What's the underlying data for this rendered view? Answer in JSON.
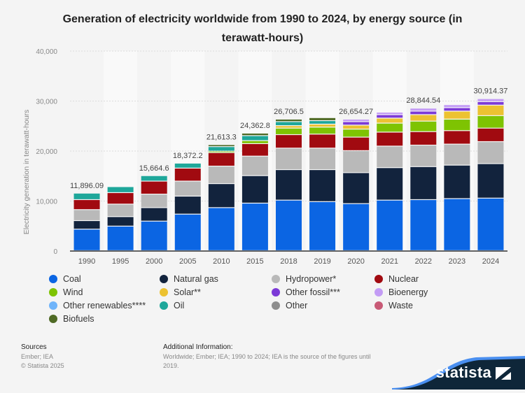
{
  "chart_data": {
    "type": "bar",
    "stacked": true,
    "title": "Generation of electricity worldwide from 1990 to 2024, by energy source (in terawatt-hours)",
    "xlabel": "",
    "ylabel": "Electricity generation in terawatt-hours",
    "ylim": [
      0,
      40000
    ],
    "yticks": [
      0,
      10000,
      20000,
      30000,
      40000
    ],
    "ytick_labels": [
      "0",
      "10,000",
      "20,000",
      "30,000",
      "40,000"
    ],
    "grid": true,
    "legend_position": "bottom",
    "categories": [
      "1990",
      "1995",
      "2000",
      "2005",
      "2010",
      "2015",
      "2018",
      "2019",
      "2020",
      "2021",
      "2022",
      "2023",
      "2024"
    ],
    "totals": [
      11896.09,
      null,
      15664.6,
      18372.2,
      21613.3,
      24362.8,
      26706.5,
      null,
      26654.27,
      null,
      28844.54,
      null,
      30914.37
    ],
    "total_labels": [
      "11,896.09",
      "",
      "15,664.6",
      "18,372.2",
      "21,613.3",
      "24,362.8",
      "26,706.5",
      "",
      "26,654.27",
      "",
      "28,844.54",
      "",
      "30,914.37"
    ],
    "series": [
      {
        "name": "Coal",
        "color": "#0b65e3",
        "values": [
          4300,
          4900,
          5900,
          7300,
          8600,
          9500,
          10100,
          9800,
          9400,
          10100,
          10200,
          10400,
          10500
        ]
      },
      {
        "name": "Natural gas",
        "color": "#12233d",
        "values": [
          1700,
          1900,
          2700,
          3600,
          4800,
          5500,
          6100,
          6400,
          6200,
          6500,
          6600,
          6700,
          6900
        ]
      },
      {
        "name": "Hydropower*",
        "color": "#b9b9b9",
        "values": [
          2200,
          2500,
          2700,
          3000,
          3500,
          3900,
          4300,
          4300,
          4400,
          4300,
          4300,
          4200,
          4400
        ]
      },
      {
        "name": "Nuclear",
        "color": "#a10a10",
        "values": [
          2000,
          2300,
          2600,
          2600,
          2700,
          2500,
          2700,
          2800,
          2700,
          2800,
          2700,
          2700,
          2700
        ]
      },
      {
        "name": "Wind",
        "color": "#7ec302",
        "values": [
          0,
          0,
          0,
          0,
          300,
          600,
          1300,
          1400,
          1600,
          1800,
          2100,
          2300,
          2500
        ]
      },
      {
        "name": "Solar**",
        "color": "#ecc231",
        "values": [
          0,
          0,
          0,
          0,
          0,
          0,
          500,
          600,
          800,
          1000,
          1300,
          1600,
          2100
        ]
      },
      {
        "name": "Other fossil***",
        "color": "#7c3ad7",
        "values": [
          0,
          0,
          0,
          0,
          0,
          0,
          0,
          0,
          700,
          700,
          700,
          700,
          700
        ]
      },
      {
        "name": "Bioenergy",
        "color": "#c39cf5",
        "values": [
          0,
          0,
          0,
          0,
          0,
          0,
          0,
          0,
          500,
          500,
          600,
          600,
          600
        ]
      },
      {
        "name": "Other renewables****",
        "color": "#6fb4fa",
        "values": [
          0,
          0,
          0,
          0,
          0,
          0,
          0,
          0,
          0,
          0,
          0,
          0,
          0
        ]
      },
      {
        "name": "Oil",
        "color": "#1ea79a",
        "values": [
          1300,
          1200,
          1100,
          1000,
          900,
          1000,
          800,
          700,
          0,
          0,
          0,
          0,
          0
        ]
      },
      {
        "name": "Other",
        "color": "#8e8e8e",
        "values": [
          0,
          0,
          0,
          0,
          0,
          0,
          0,
          0,
          0,
          0,
          0,
          0,
          0
        ]
      },
      {
        "name": "Waste",
        "color": "#c85a76",
        "values": [
          0,
          0,
          0,
          0,
          0,
          0,
          0,
          0,
          0,
          0,
          0,
          0,
          0
        ]
      },
      {
        "name": "Biofuels",
        "color": "#4f6a25",
        "values": [
          0,
          0,
          0,
          0,
          400,
          500,
          500,
          600,
          0,
          0,
          0,
          0,
          0
        ]
      }
    ]
  },
  "legend": {
    "items": [
      {
        "label": "Coal",
        "color": "#0b65e3"
      },
      {
        "label": "Natural gas",
        "color": "#12233d"
      },
      {
        "label": "Hydropower*",
        "color": "#b9b9b9"
      },
      {
        "label": "Nuclear",
        "color": "#a10a10"
      },
      {
        "label": "Wind",
        "color": "#7ec302"
      },
      {
        "label": "Solar**",
        "color": "#ecc231"
      },
      {
        "label": "Other fossil***",
        "color": "#7c3ad7"
      },
      {
        "label": "Bioenergy",
        "color": "#c39cf5"
      },
      {
        "label": "Other renewables****",
        "color": "#6fb4fa"
      },
      {
        "label": "Oil",
        "color": "#1ea79a"
      },
      {
        "label": "Other",
        "color": "#8e8e8e"
      },
      {
        "label": "Waste",
        "color": "#c85a76"
      },
      {
        "label": "Biofuels",
        "color": "#4f6a25"
      }
    ]
  },
  "footer": {
    "sources_title": "Sources",
    "sources_line1": "Ember; IEA",
    "sources_line2": "© Statista 2025",
    "additional_title": "Additional Information:",
    "additional_text": "Worldwide; Ember; IEA; 1990 to 2024; IEA is the source of the figures until 2019.",
    "logo_text": "statista"
  }
}
